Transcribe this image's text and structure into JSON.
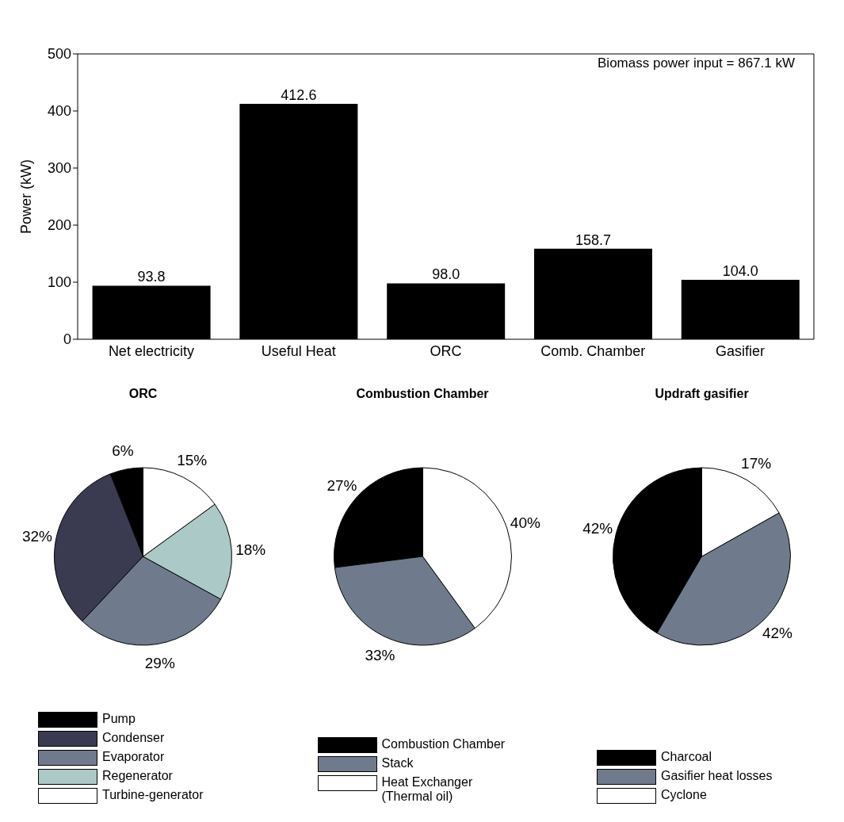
{
  "chart_data": [
    {
      "type": "bar",
      "ylabel": "Power (kW)",
      "categories": [
        "Net electricity",
        "Useful Heat",
        "ORC",
        "Comb. Chamber",
        "Gasifier"
      ],
      "values": [
        93.8,
        412.6,
        98.0,
        158.7,
        104.0
      ],
      "value_labels": [
        "93.8",
        "412.6",
        "98.0",
        "158.7",
        "104.0"
      ],
      "color": "#000000",
      "ylim": [
        0,
        500
      ],
      "yticks": [
        0,
        100,
        200,
        300,
        400,
        500
      ],
      "annotations": [
        "Biomass power input = 867.1 kW"
      ]
    },
    {
      "type": "pie",
      "title": "ORC",
      "categories": [
        "Pump",
        "Condenser",
        "Evaporator",
        "Regenerator",
        "Turbine-generator"
      ],
      "values": [
        6,
        32,
        29,
        18,
        15
      ],
      "value_labels": [
        "6%",
        "32%",
        "29%",
        "18%",
        "15%"
      ],
      "colors": [
        "#000000",
        "#3a3a50",
        "#6f7b8c",
        "#abc9c6",
        "#ffffff"
      ],
      "legend": "bottom"
    },
    {
      "type": "pie",
      "title": "Combustion Chamber",
      "categories": [
        "Combustion Chamber",
        "Stack",
        "Heat Exchanger (Thermal oil)"
      ],
      "values": [
        27,
        33,
        40
      ],
      "value_labels": [
        "27%",
        "33%",
        "40%"
      ],
      "colors": [
        "#000000",
        "#6f7b8c",
        "#ffffff"
      ],
      "legend": "bottom"
    },
    {
      "type": "pie",
      "title": "Updraft gasifier",
      "categories": [
        "Charcoal",
        "Gasifier heat losses",
        "Cyclone"
      ],
      "values": [
        42,
        42,
        17
      ],
      "value_labels": [
        "42%",
        "42%",
        "17%"
      ],
      "colors": [
        "#000000",
        "#6f7b8c",
        "#ffffff"
      ],
      "legend": "bottom"
    }
  ]
}
